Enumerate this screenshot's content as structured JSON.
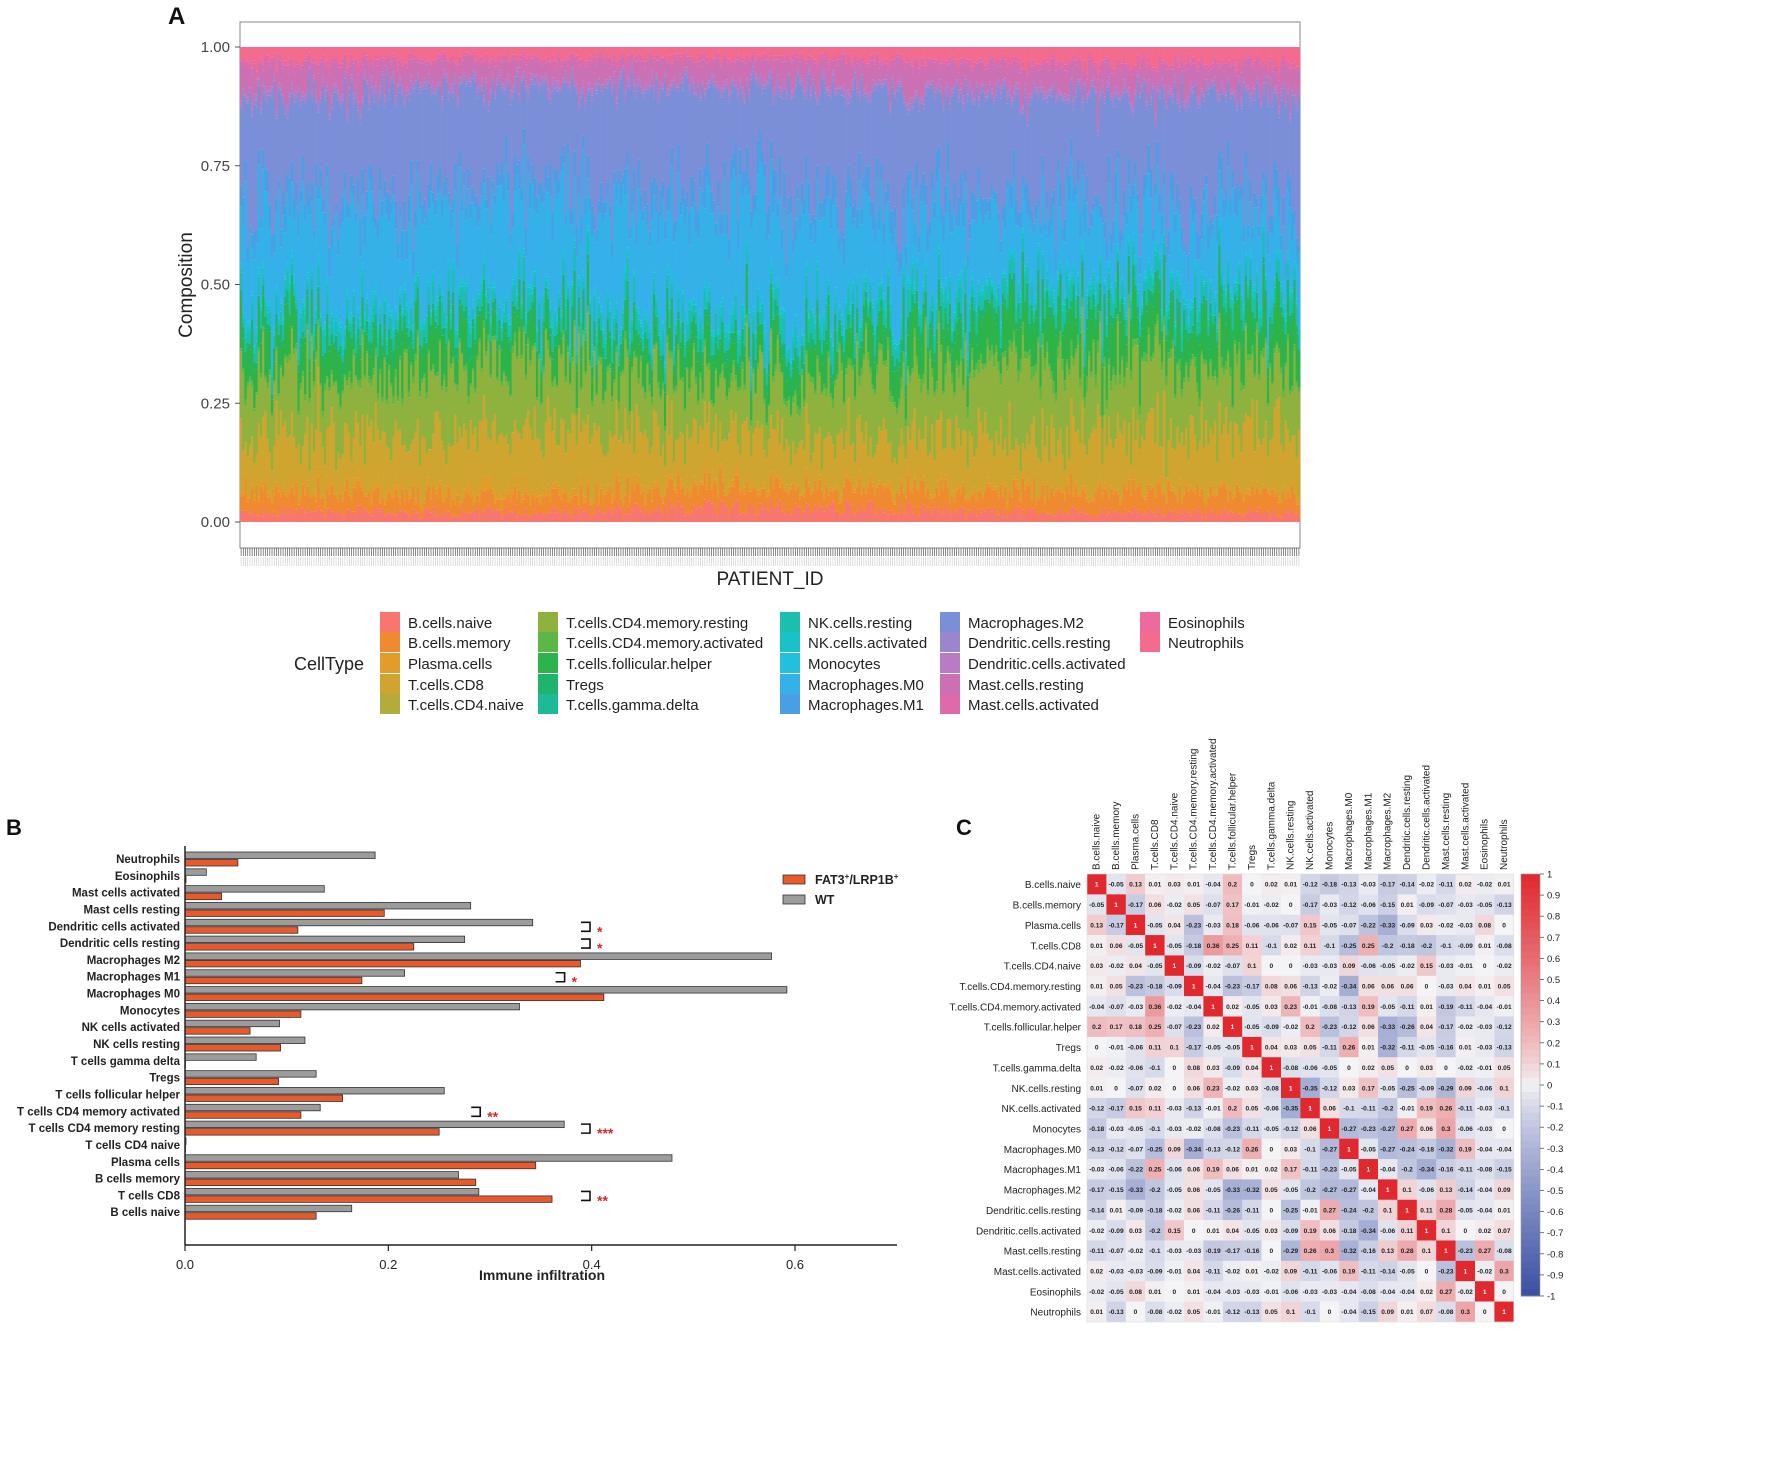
{
  "panels": {
    "a": "A",
    "b": "B",
    "c": "C"
  },
  "colors": {
    "fat3": "#e8592b",
    "wt": "#9c9c9c",
    "significance": "#d62728",
    "heat_pos": "#e0282e",
    "heat_neg": "#3a4fa3",
    "heat_zero": "#f4f4f6"
  },
  "chart_data": [
    {
      "id": "A",
      "type": "area",
      "stacked": true,
      "title": "",
      "xlabel": "PATIENT_ID",
      "ylabel": "Composition",
      "ylim": [
        0,
        1
      ],
      "yticks": [
        "0.00",
        "0.25",
        "0.50",
        "0.75",
        "1.00"
      ],
      "ytick_values": [
        0,
        0.25,
        0.5,
        0.75,
        1
      ],
      "n_patients": 480,
      "legend_title": "CellType",
      "legend": [
        {
          "name": "B.cells.naive",
          "color": "#f8766d"
        },
        {
          "name": "B.cells.memory",
          "color": "#ef8a31"
        },
        {
          "name": "Plasma.cells",
          "color": "#e29c2a"
        },
        {
          "name": "T.cells.CD8",
          "color": "#cfa530"
        },
        {
          "name": "T.cells.CD4.naive",
          "color": "#b3ac3c"
        },
        {
          "name": "T.cells.CD4.memory.resting",
          "color": "#8fb23f"
        },
        {
          "name": "T.cells.CD4.memory.activated",
          "color": "#5cb846"
        },
        {
          "name": "T.cells.follicular.helper",
          "color": "#2cb34a"
        },
        {
          "name": "Tregs",
          "color": "#1fb46e"
        },
        {
          "name": "T.cells.gamma.delta",
          "color": "#1cbb96"
        },
        {
          "name": "NK.cells.resting",
          "color": "#1bbfb0"
        },
        {
          "name": "NK.cells.activated",
          "color": "#19c1c8"
        },
        {
          "name": "Monocytes",
          "color": "#21c0dc"
        },
        {
          "name": "Macrophages.M0",
          "color": "#34b1e8"
        },
        {
          "name": "Macrophages.M1",
          "color": "#4a9ee4"
        },
        {
          "name": "Macrophages.M2",
          "color": "#7b8fd8"
        },
        {
          "name": "Dendritic.cells.resting",
          "color": "#9a86cf"
        },
        {
          "name": "Dendritic.cells.activated",
          "color": "#b97cc4"
        },
        {
          "name": "Mast.cells.resting",
          "color": "#cc70b4"
        },
        {
          "name": "Mast.cells.activated",
          "color": "#df6aaa"
        },
        {
          "name": "Eosinophils",
          "color": "#ec6a9c"
        },
        {
          "name": "Neutrophils",
          "color": "#f36b8d"
        }
      ],
      "profile_keys": [
        0,
        0.25,
        0.5,
        0.75,
        1
      ],
      "profile_stack": [
        [
          0.02,
          0.04,
          0.01,
          0.1,
          0.0,
          0.12,
          0.01,
          0.07,
          0.02,
          0.0,
          0.03,
          0.01,
          0.01,
          0.18,
          0.04,
          0.23,
          0.01,
          0.01,
          0.05,
          0.01,
          0.0,
          0.03
        ],
        [
          0.02,
          0.03,
          0.02,
          0.12,
          0.0,
          0.14,
          0.01,
          0.07,
          0.02,
          0.0,
          0.03,
          0.01,
          0.01,
          0.2,
          0.04,
          0.18,
          0.01,
          0.01,
          0.04,
          0.01,
          0.0,
          0.02
        ],
        [
          0.03,
          0.04,
          0.01,
          0.09,
          0.0,
          0.11,
          0.01,
          0.06,
          0.02,
          0.0,
          0.04,
          0.01,
          0.01,
          0.22,
          0.05,
          0.21,
          0.01,
          0.01,
          0.04,
          0.01,
          0.0,
          0.02
        ],
        [
          0.02,
          0.04,
          0.01,
          0.11,
          0.0,
          0.15,
          0.02,
          0.08,
          0.02,
          0.0,
          0.03,
          0.01,
          0.01,
          0.14,
          0.04,
          0.2,
          0.01,
          0.01,
          0.05,
          0.01,
          0.0,
          0.03
        ],
        [
          0.02,
          0.04,
          0.01,
          0.12,
          0.0,
          0.13,
          0.01,
          0.09,
          0.02,
          0.0,
          0.03,
          0.01,
          0.01,
          0.13,
          0.04,
          0.22,
          0.01,
          0.01,
          0.05,
          0.01,
          0.0,
          0.03
        ]
      ]
    },
    {
      "id": "B",
      "type": "bar",
      "orientation": "horizontal",
      "xlabel": "Immune infiltration",
      "xlim": [
        0,
        0.7
      ],
      "xticks": [
        "0.0",
        "0.2",
        "0.4",
        "0.6"
      ],
      "xtick_values": [
        0,
        0.2,
        0.4,
        0.6
      ],
      "legend": [
        {
          "name": "FAT3",
          "sup": "+",
          "sep": "/LRP1B",
          "sup2": "+",
          "color_key": "fat3"
        },
        {
          "name": "WT",
          "color_key": "wt"
        }
      ],
      "categories": [
        "Neutrophils",
        "Eosinophils",
        "Mast cells activated",
        "Mast cells resting",
        "Dendritic cells activated",
        "Dendritic cells resting",
        "Macrophages M2",
        "Macrophages M1",
        "Macrophages M0",
        "Monocytes",
        "NK cells activated",
        "NK cells resting",
        "T cells gamma delta",
        "Tregs",
        "T cells follicular helper",
        "T cells CD4 memory activated",
        "T cells CD4 memory resting",
        "T cells CD4 naive",
        "Plasma cells",
        "B cells memory",
        "T cells CD8",
        "B cells naive"
      ],
      "series": [
        {
          "name": "WT",
          "values": [
            0.187,
            0.021,
            0.137,
            0.281,
            0.342,
            0.275,
            0.577,
            0.216,
            0.592,
            0.329,
            0.093,
            0.118,
            0.07,
            0.129,
            0.255,
            0.133,
            0.373,
            0.001,
            0.479,
            0.269,
            0.289,
            0.164
          ]
        },
        {
          "name": "FAT3+/LRP1B+",
          "values": [
            0.052,
            0.001,
            0.036,
            0.196,
            0.111,
            0.225,
            0.389,
            0.174,
            0.412,
            0.114,
            0.064,
            0.094,
            0.0,
            0.092,
            0.155,
            0.114,
            0.25,
            0.0,
            0.345,
            0.286,
            0.361,
            0.129
          ]
        }
      ],
      "significance": [
        {
          "category": "Dendritic cells activated",
          "label": "*"
        },
        {
          "category": "Dendritic cells resting",
          "label": "*"
        },
        {
          "category": "Macrophages M1",
          "label": "*"
        },
        {
          "category": "T cells CD4 memory activated",
          "label": "**"
        },
        {
          "category": "T cells CD4 memory resting",
          "label": "***"
        },
        {
          "category": "T cells CD8",
          "label": "**"
        }
      ]
    },
    {
      "id": "C",
      "type": "heatmap",
      "labels": [
        "B.cells.naive",
        "B.cells.memory",
        "Plasma.cells",
        "T.cells.CD8",
        "T.cells.CD4.naive",
        "T.cells.CD4.memory.resting",
        "T.cells.CD4.memory.activated",
        "T.cells.follicular.helper",
        "Tregs",
        "T.cells.gamma.delta",
        "NK.cells.resting",
        "NK.cells.activated",
        "Monocytes",
        "Macrophages.M0",
        "Macrophages.M1",
        "Macrophages.M2",
        "Dendritic.cells.resting",
        "Dendritic.cells.activated",
        "Mast.cells.resting",
        "Mast.cells.activated",
        "Eosinophils",
        "Neutrophils"
      ],
      "matrix": [
        [
          "1",
          "-0.05",
          "0.13",
          "0.01",
          "0.03",
          "0.01",
          "-0.04",
          "0.2",
          "0",
          "0.02",
          "0.01",
          "-0.12",
          "-0.18",
          "-0.13",
          "-0.03",
          "-0.17",
          "-0.14",
          "-0.02",
          "-0.11",
          "0.02",
          "-0.02",
          "0.01"
        ],
        [
          "-0.05",
          "1",
          "-0.17",
          "0.06",
          "-0.02",
          "0.05",
          "-0.07",
          "0.17",
          "-0.01",
          "-0.02",
          "0",
          "-0.17",
          "-0.03",
          "-0.12",
          "-0.06",
          "-0.15",
          "0.01",
          "-0.09",
          "-0.07",
          "-0.03",
          "-0.05",
          "-0.13"
        ],
        [
          "0.13",
          "-0.17",
          "1",
          "-0.05",
          "0.04",
          "-0.23",
          "-0.03",
          "0.18",
          "-0.06",
          "-0.06",
          "-0.07",
          "0.15",
          "-0.05",
          "-0.07",
          "-0.22",
          "-0.33",
          "-0.09",
          "0.03",
          "-0.02",
          "-0.03",
          "0.08",
          "0"
        ],
        [
          "0.01",
          "0.06",
          "-0.05",
          "1",
          "-0.05",
          "-0.18",
          "0.36",
          "0.25",
          "0.11",
          "-0.1",
          "0.02",
          "0.11",
          "-0.1",
          "-0.25",
          "0.25",
          "-0.2",
          "-0.18",
          "-0.2",
          "-0.1",
          "-0.09",
          "0.01",
          "-0.08"
        ],
        [
          "0.03",
          "-0.02",
          "0.04",
          "-0.05",
          "1",
          "-0.09",
          "-0.02",
          "-0.07",
          "0.1",
          "0",
          "0",
          "-0.03",
          "-0.03",
          "0.09",
          "-0.06",
          "-0.05",
          "-0.02",
          "0.15",
          "-0.03",
          "-0.01",
          "0",
          "-0.02"
        ],
        [
          "0.01",
          "0.05",
          "-0.23",
          "-0.18",
          "-0.09",
          "1",
          "-0.04",
          "-0.23",
          "-0.17",
          "0.08",
          "0.06",
          "-0.13",
          "-0.02",
          "-0.34",
          "0.06",
          "0.06",
          "0.06",
          "0",
          "-0.03",
          "0.04",
          "0.01",
          "0.05"
        ],
        [
          "-0.04",
          "-0.07",
          "-0.03",
          "0.36",
          "-0.02",
          "-0.04",
          "1",
          "0.02",
          "-0.05",
          "0.03",
          "0.23",
          "-0.01",
          "-0.08",
          "-0.13",
          "0.19",
          "-0.05",
          "-0.11",
          "0.01",
          "-0.19",
          "-0.11",
          "-0.04",
          "-0.01"
        ],
        [
          "0.2",
          "0.17",
          "0.18",
          "0.25",
          "-0.07",
          "-0.23",
          "0.02",
          "1",
          "-0.05",
          "-0.09",
          "-0.02",
          "0.2",
          "-0.23",
          "-0.12",
          "0.06",
          "-0.33",
          "-0.26",
          "0.04",
          "-0.17",
          "-0.02",
          "-0.03",
          "-0.12"
        ],
        [
          "0",
          "-0.01",
          "-0.06",
          "0.11",
          "0.1",
          "-0.17",
          "-0.05",
          "-0.05",
          "1",
          "0.04",
          "0.03",
          "0.05",
          "-0.11",
          "0.26",
          "0.01",
          "-0.32",
          "-0.11",
          "-0.05",
          "-0.16",
          "0.01",
          "-0.03",
          "-0.13"
        ],
        [
          "0.02",
          "-0.02",
          "-0.06",
          "-0.1",
          "0",
          "0.08",
          "0.03",
          "-0.09",
          "0.04",
          "1",
          "-0.08",
          "-0.06",
          "-0.05",
          "0",
          "0.02",
          "0.05",
          "0",
          "0.03",
          "0",
          "-0.02",
          "-0.01",
          "0.05"
        ],
        [
          "0.01",
          "0",
          "-0.07",
          "0.02",
          "0",
          "0.06",
          "0.23",
          "-0.02",
          "0.03",
          "-0.08",
          "1",
          "-0.35",
          "-0.12",
          "0.03",
          "0.17",
          "-0.05",
          "-0.25",
          "-0.09",
          "-0.29",
          "0.09",
          "-0.06",
          "0.1"
        ],
        [
          "-0.12",
          "-0.17",
          "0.15",
          "0.11",
          "-0.03",
          "-0.13",
          "-0.01",
          "0.2",
          "0.05",
          "-0.06",
          "-0.35",
          "1",
          "0.06",
          "-0.1",
          "-0.11",
          "-0.2",
          "-0.01",
          "0.19",
          "0.26",
          "-0.11",
          "-0.03",
          "-0.1"
        ],
        [
          "-0.18",
          "-0.03",
          "-0.05",
          "-0.1",
          "-0.03",
          "-0.02",
          "-0.08",
          "-0.23",
          "-0.11",
          "-0.05",
          "-0.12",
          "0.06",
          "1",
          "-0.27",
          "-0.23",
          "-0.27",
          "0.27",
          "0.06",
          "0.3",
          "-0.06",
          "-0.03",
          "0"
        ],
        [
          "-0.13",
          "-0.12",
          "-0.07",
          "-0.25",
          "0.09",
          "-0.34",
          "-0.13",
          "-0.12",
          "0.26",
          "0",
          "0.03",
          "-0.1",
          "-0.27",
          "1",
          "-0.05",
          "-0.27",
          "-0.24",
          "-0.18",
          "-0.32",
          "0.19",
          "-0.04",
          "-0.04"
        ],
        [
          "-0.03",
          "-0.06",
          "-0.22",
          "0.25",
          "-0.06",
          "0.06",
          "0.19",
          "0.06",
          "0.01",
          "0.02",
          "0.17",
          "-0.11",
          "-0.23",
          "-0.05",
          "1",
          "-0.04",
          "-0.2",
          "-0.34",
          "-0.16",
          "-0.11",
          "-0.08",
          "-0.15"
        ],
        [
          "-0.17",
          "-0.15",
          "-0.33",
          "-0.2",
          "-0.05",
          "0.06",
          "-0.05",
          "-0.33",
          "-0.32",
          "0.05",
          "-0.05",
          "-0.2",
          "-0.27",
          "-0.27",
          "-0.04",
          "1",
          "0.1",
          "-0.06",
          "0.13",
          "-0.14",
          "-0.04",
          "0.09"
        ],
        [
          "-0.14",
          "0.01",
          "-0.09",
          "-0.18",
          "-0.02",
          "0.06",
          "-0.11",
          "-0.26",
          "-0.11",
          "0",
          "-0.25",
          "-0.01",
          "0.27",
          "-0.24",
          "-0.2",
          "0.1",
          "1",
          "0.11",
          "0.28",
          "-0.05",
          "-0.04",
          "0.01"
        ],
        [
          "-0.02",
          "-0.09",
          "0.03",
          "-0.2",
          "0.15",
          "0",
          "0.01",
          "0.04",
          "-0.05",
          "0.03",
          "-0.09",
          "0.19",
          "0.06",
          "-0.18",
          "-0.34",
          "-0.06",
          "0.11",
          "1",
          "0.1",
          "0",
          "0.02",
          "0.07"
        ],
        [
          "-0.11",
          "-0.07",
          "-0.02",
          "-0.1",
          "-0.03",
          "-0.03",
          "-0.19",
          "-0.17",
          "-0.16",
          "0",
          "-0.29",
          "0.26",
          "0.3",
          "-0.32",
          "-0.16",
          "0.13",
          "0.28",
          "0.1",
          "1",
          "-0.23",
          "0.27",
          "-0.08"
        ],
        [
          "0.02",
          "-0.03",
          "-0.03",
          "-0.09",
          "-0.01",
          "0.04",
          "-0.11",
          "-0.02",
          "0.01",
          "-0.02",
          "0.09",
          "-0.11",
          "-0.06",
          "0.19",
          "-0.11",
          "-0.14",
          "-0.05",
          "0",
          "-0.23",
          "1",
          "-0.02",
          "0.3"
        ],
        [
          "-0.02",
          "-0.05",
          "0.08",
          "0.01",
          "0",
          "0.01",
          "-0.04",
          "-0.03",
          "-0.03",
          "-0.01",
          "-0.06",
          "-0.03",
          "-0.03",
          "-0.04",
          "-0.08",
          "-0.04",
          "-0.04",
          "0.02",
          "0.27",
          "-0.02",
          "1",
          "0"
        ],
        [
          "0.01",
          "-0.13",
          "0",
          "-0.08",
          "-0.02",
          "0.05",
          "-0.01",
          "-0.12",
          "-0.13",
          "0.05",
          "0.1",
          "-0.1",
          "0",
          "-0.04",
          "-0.15",
          "0.09",
          "0.01",
          "0.07",
          "-0.08",
          "0.3",
          "0",
          "1"
        ]
      ],
      "colorbar": {
        "range": [
          -1,
          1
        ],
        "ticks": [
          "1",
          "0.9",
          "0.8",
          "0.7",
          "0.6",
          "0.5",
          "0.4",
          "0.3",
          "0.2",
          "0.1",
          "0",
          "-0.1",
          "-0.2",
          "-0.3",
          "-0.4",
          "-0.5",
          "-0.6",
          "-0.7",
          "-0.8",
          "-0.9",
          "-1"
        ]
      }
    }
  ]
}
